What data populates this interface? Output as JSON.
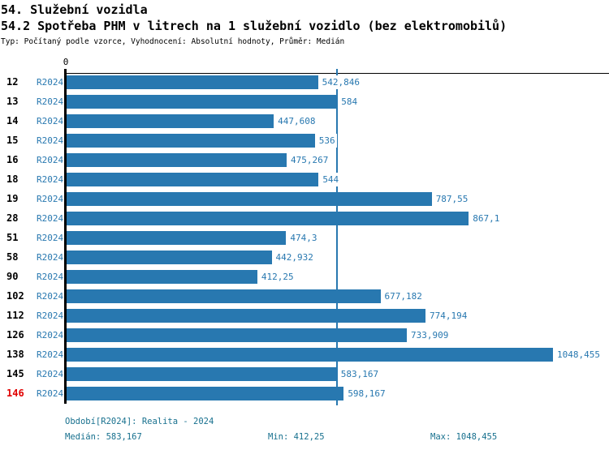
{
  "header": {
    "title": "54. Služební vozidla",
    "subtitle": "54.2 Spotřeba PHM v litrech na 1 služební vozidlo (bez elektromobilů)",
    "meta": "Typ: Počítaný podle vzorce, Vyhodnocení: Absolutní hodnoty, Průměr: Medián"
  },
  "chart_data": {
    "type": "bar",
    "orientation": "horizontal",
    "title": "54.2 Spotřeba PHM v litrech na 1 služební vozidlo (bez elektromobilů)",
    "xlabel": "",
    "ylabel": "",
    "axis_zero_label": "0",
    "series_label": "R2024",
    "xlim": [
      0,
      1170
    ],
    "grid": false,
    "legend": false,
    "median_value": 583.167,
    "rows": [
      {
        "id": "12",
        "value": 542.846,
        "label": "542,846"
      },
      {
        "id": "13",
        "value": 584,
        "label": "584"
      },
      {
        "id": "14",
        "value": 447.608,
        "label": "447,608"
      },
      {
        "id": "15",
        "value": 536,
        "label": "536"
      },
      {
        "id": "16",
        "value": 475.267,
        "label": "475,267"
      },
      {
        "id": "18",
        "value": 544,
        "label": "544"
      },
      {
        "id": "19",
        "value": 787.55,
        "label": "787,55"
      },
      {
        "id": "28",
        "value": 867.1,
        "label": "867,1"
      },
      {
        "id": "51",
        "value": 474.3,
        "label": "474,3"
      },
      {
        "id": "58",
        "value": 442.932,
        "label": "442,932"
      },
      {
        "id": "90",
        "value": 412.25,
        "label": "412,25"
      },
      {
        "id": "102",
        "value": 677.182,
        "label": "677,182"
      },
      {
        "id": "112",
        "value": 774.194,
        "label": "774,194"
      },
      {
        "id": "126",
        "value": 733.909,
        "label": "733,909"
      },
      {
        "id": "138",
        "value": 1048.455,
        "label": "1048,455"
      },
      {
        "id": "145",
        "value": 583.167,
        "label": "583,167"
      },
      {
        "id": "146",
        "value": 598.167,
        "label": "598,167",
        "highlight": true
      }
    ],
    "colors": {
      "bar": "#2878B0",
      "median_line": "#2878B0",
      "value_label": "#2878B0",
      "series_label": "#2878B0",
      "highlight": "#E00000",
      "footer_text": "#17708E",
      "axis": "#000000"
    }
  },
  "footer": {
    "period": "Období[R2024]: Realita - 2024",
    "median": "Medián: 583,167",
    "min": "Min: 412,25",
    "max": "Max: 1048,455"
  }
}
